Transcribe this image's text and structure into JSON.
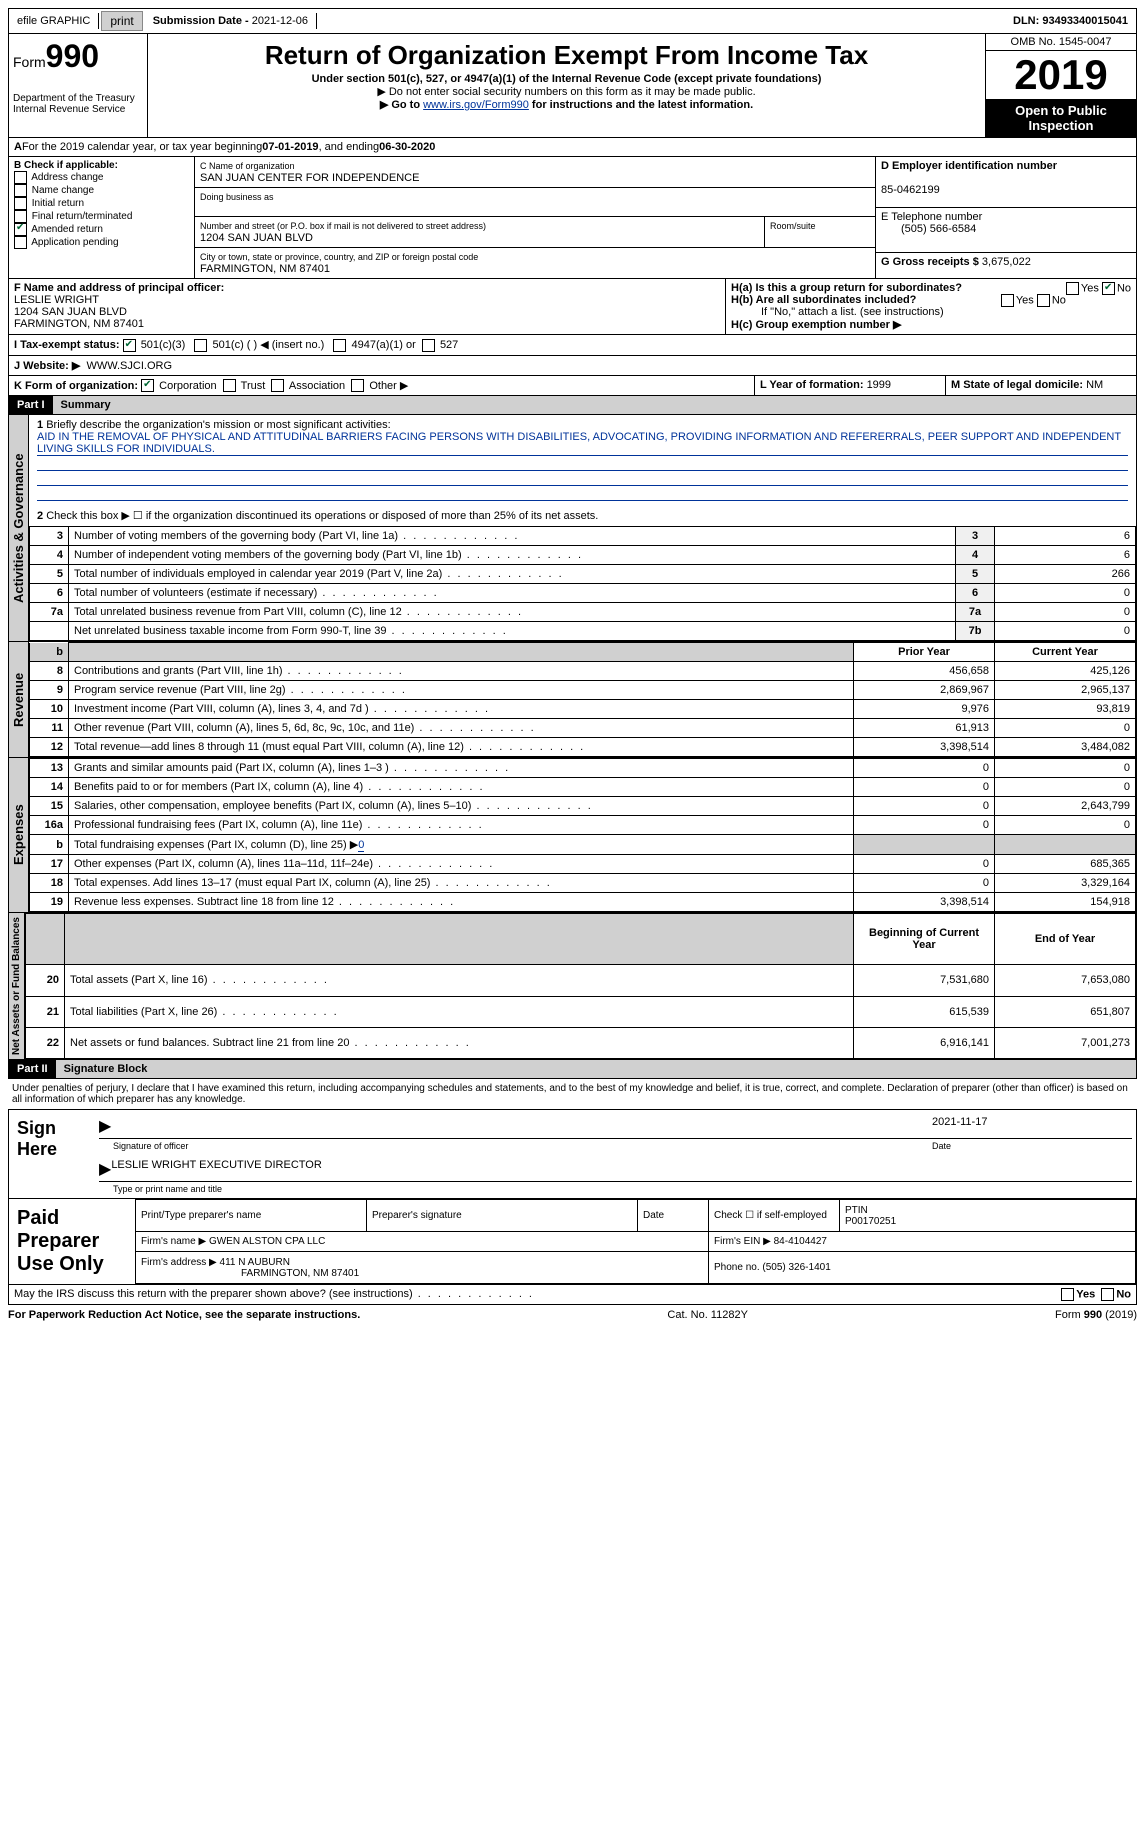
{
  "topbar": {
    "efile": "efile GRAPHIC",
    "print": "print",
    "sub_label": "Submission Date - ",
    "sub_date": "2021-12-06",
    "dln_label": "DLN: ",
    "dln": "93493340015041"
  },
  "header": {
    "form_prefix": "Form",
    "form_num": "990",
    "dept": "Department of the Treasury\nInternal Revenue Service",
    "title": "Return of Organization Exempt From Income Tax",
    "sub1": "Under section 501(c), 527, or 4947(a)(1) of the Internal Revenue Code (except private foundations)",
    "sub2": "▶ Do not enter social security numbers on this form as it may be made public.",
    "sub3_pre": "▶ Go to ",
    "sub3_link": "www.irs.gov/Form990",
    "sub3_post": " for instructions and the latest information.",
    "omb": "OMB No. 1545-0047",
    "year": "2019",
    "open": "Open to Public Inspection"
  },
  "period": {
    "line_a": "For the 2019 calendar year, or tax year beginning ",
    "begin": "07-01-2019",
    "mid": " , and ending ",
    "end": "06-30-2020"
  },
  "section_b": {
    "hdr": "B Check if applicable:",
    "items": [
      {
        "label": "Address change",
        "checked": false
      },
      {
        "label": "Name change",
        "checked": false
      },
      {
        "label": "Initial return",
        "checked": false
      },
      {
        "label": "Final return/terminated",
        "checked": false
      },
      {
        "label": "Amended return",
        "checked": true
      },
      {
        "label": "Application pending",
        "checked": false
      }
    ]
  },
  "section_c": {
    "name_lbl": "C Name of organization",
    "name": "SAN JUAN CENTER FOR INDEPENDENCE",
    "dba_lbl": "Doing business as",
    "dba": "",
    "addr_lbl": "Number and street (or P.O. box if mail is not delivered to street address)",
    "room_lbl": "Room/suite",
    "addr": "1204 SAN JUAN BLVD",
    "city_lbl": "City or town, state or province, country, and ZIP or foreign postal code",
    "city": "FARMINGTON, NM  87401"
  },
  "section_d": {
    "lbl": "D Employer identification number",
    "val": "85-0462199"
  },
  "section_e": {
    "lbl": "E Telephone number",
    "val": "(505) 566-6584"
  },
  "section_g": {
    "lbl": "G Gross receipts $ ",
    "val": "3,675,022"
  },
  "section_f": {
    "lbl": "F Name and address of principal officer:",
    "name": "LESLIE WRIGHT",
    "addr1": "1204 SAN JUAN BLVD",
    "addr2": "FARMINGTON, NM  87401"
  },
  "section_h": {
    "ha": "H(a)  Is this a group return for subordinates?",
    "ha_yes": "Yes",
    "ha_no": "No",
    "hb": "H(b)  Are all subordinates included?",
    "hb_yes": "Yes",
    "hb_no": "No",
    "hb_note": "If \"No,\" attach a list. (see instructions)",
    "hc": "H(c)  Group exemption number ▶"
  },
  "tax_status": {
    "lbl": "I   Tax-exempt status:",
    "opts": [
      "501(c)(3)",
      "501(c) (  ) ◀ (insert no.)",
      "4947(a)(1) or",
      "527"
    ]
  },
  "website": {
    "lbl": "J   Website: ▶",
    "val": "WWW.SJCI.ORG"
  },
  "section_k": {
    "lbl": "K Form of organization:",
    "opts": [
      "Corporation",
      "Trust",
      "Association",
      "Other ▶"
    ]
  },
  "section_l": {
    "lbl": "L Year of formation: ",
    "val": "1999"
  },
  "section_m": {
    "lbl": "M State of legal domicile: ",
    "val": "NM"
  },
  "part1": {
    "hdr": "Part I",
    "title": "Summary",
    "line1_lbl": "Briefly describe the organization's mission or most significant activities:",
    "mission": "AID IN THE REMOVAL OF PHYSICAL AND ATTITUDINAL BARRIERS FACING PERSONS WITH DISABILITIES, ADVOCATING, PROVIDING INFORMATION AND REFERERRALS, PEER SUPPORT AND INDEPENDENT LIVING SKILLS FOR INDIVIDUALS.",
    "line2": "Check this box ▶ ☐ if the organization discontinued its operations or disposed of more than 25% of its net assets.",
    "gov_lines": [
      {
        "n": "3",
        "t": "Number of voting members of the governing body (Part VI, line 1a)",
        "b": "3",
        "v": "6"
      },
      {
        "n": "4",
        "t": "Number of independent voting members of the governing body (Part VI, line 1b)",
        "b": "4",
        "v": "6"
      },
      {
        "n": "5",
        "t": "Total number of individuals employed in calendar year 2019 (Part V, line 2a)",
        "b": "5",
        "v": "266"
      },
      {
        "n": "6",
        "t": "Total number of volunteers (estimate if necessary)",
        "b": "6",
        "v": "0"
      },
      {
        "n": "7a",
        "t": "Total unrelated business revenue from Part VIII, column (C), line 12",
        "b": "7a",
        "v": "0"
      },
      {
        "n": "",
        "t": "Net unrelated business taxable income from Form 990-T, line 39",
        "b": "7b",
        "v": "0"
      }
    ],
    "rev_hdr_prior": "Prior Year",
    "rev_hdr_curr": "Current Year",
    "rev_lines": [
      {
        "n": "8",
        "t": "Contributions and grants (Part VIII, line 1h)",
        "p": "456,658",
        "c": "425,126"
      },
      {
        "n": "9",
        "t": "Program service revenue (Part VIII, line 2g)",
        "p": "2,869,967",
        "c": "2,965,137"
      },
      {
        "n": "10",
        "t": "Investment income (Part VIII, column (A), lines 3, 4, and 7d )",
        "p": "9,976",
        "c": "93,819"
      },
      {
        "n": "11",
        "t": "Other revenue (Part VIII, column (A), lines 5, 6d, 8c, 9c, 10c, and 11e)",
        "p": "61,913",
        "c": "0"
      },
      {
        "n": "12",
        "t": "Total revenue—add lines 8 through 11 (must equal Part VIII, column (A), line 12)",
        "p": "3,398,514",
        "c": "3,484,082"
      }
    ],
    "exp_lines": [
      {
        "n": "13",
        "t": "Grants and similar amounts paid (Part IX, column (A), lines 1–3 )",
        "p": "0",
        "c": "0"
      },
      {
        "n": "14",
        "t": "Benefits paid to or for members (Part IX, column (A), line 4)",
        "p": "0",
        "c": "0"
      },
      {
        "n": "15",
        "t": "Salaries, other compensation, employee benefits (Part IX, column (A), lines 5–10)",
        "p": "0",
        "c": "2,643,799"
      },
      {
        "n": "16a",
        "t": "Professional fundraising fees (Part IX, column (A), line 11e)",
        "p": "0",
        "c": "0"
      }
    ],
    "line16b": "Total fundraising expenses (Part IX, column (D), line 25) ▶",
    "line16b_val": "0",
    "exp_lines2": [
      {
        "n": "17",
        "t": "Other expenses (Part IX, column (A), lines 11a–11d, 11f–24e)",
        "p": "0",
        "c": "685,365"
      },
      {
        "n": "18",
        "t": "Total expenses. Add lines 13–17 (must equal Part IX, column (A), line 25)",
        "p": "0",
        "c": "3,329,164"
      },
      {
        "n": "19",
        "t": "Revenue less expenses. Subtract line 18 from line 12",
        "p": "3,398,514",
        "c": "154,918"
      }
    ],
    "na_hdr_beg": "Beginning of Current Year",
    "na_hdr_end": "End of Year",
    "na_lines": [
      {
        "n": "20",
        "t": "Total assets (Part X, line 16)",
        "p": "7,531,680",
        "c": "7,653,080"
      },
      {
        "n": "21",
        "t": "Total liabilities (Part X, line 26)",
        "p": "615,539",
        "c": "651,807"
      },
      {
        "n": "22",
        "t": "Net assets or fund balances. Subtract line 21 from line 20",
        "p": "6,916,141",
        "c": "7,001,273"
      }
    ],
    "vtabs": {
      "gov": "Activities & Governance",
      "rev": "Revenue",
      "exp": "Expenses",
      "na": "Net Assets or Fund Balances"
    }
  },
  "part2": {
    "hdr": "Part II",
    "title": "Signature Block",
    "perjury": "Under penalties of perjury, I declare that I have examined this return, including accompanying schedules and statements, and to the best of my knowledge and belief, it is true, correct, and complete. Declaration of preparer (other than officer) is based on all information of which preparer has any knowledge.",
    "sign_here": "Sign Here",
    "sig_officer": "Signature of officer",
    "sig_date_lbl": "Date",
    "sig_date": "2021-11-17",
    "sig_name": "LESLIE WRIGHT  EXECUTIVE DIRECTOR",
    "sig_name_lbl": "Type or print name and title",
    "paid_hdr": "Paid Preparer Use Only",
    "prep_name_lbl": "Print/Type preparer's name",
    "prep_sig_lbl": "Preparer's signature",
    "prep_date_lbl": "Date",
    "prep_self": "Check ☐ if self-employed",
    "ptin_lbl": "PTIN",
    "ptin": "P00170251",
    "firm_name_lbl": "Firm's name     ▶",
    "firm_name": "GWEN ALSTON CPA LLC",
    "firm_ein_lbl": "Firm's EIN ▶",
    "firm_ein": "84-4104427",
    "firm_addr_lbl": "Firm's address ▶",
    "firm_addr": "411 N AUBURN",
    "firm_city": "FARMINGTON, NM  87401",
    "firm_phone_lbl": "Phone no. ",
    "firm_phone": "(505) 326-1401",
    "discuss": "May the IRS discuss this return with the preparer shown above? (see instructions)",
    "discuss_yes": "Yes",
    "discuss_no": "No"
  },
  "footer": {
    "left": "For Paperwork Reduction Act Notice, see the separate instructions.",
    "mid": "Cat. No. 11282Y",
    "right": "Form 990 (2019)"
  }
}
